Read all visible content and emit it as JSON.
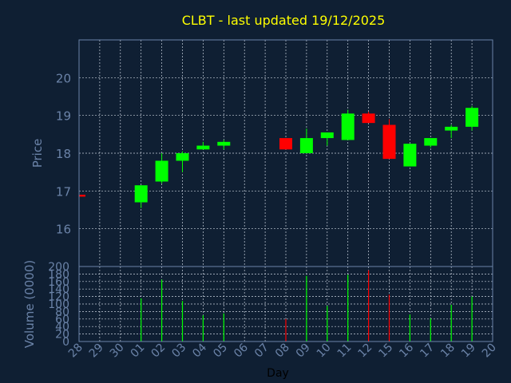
{
  "chart_data": [
    {
      "type": "candlestick",
      "title": "CLBT - last updated 19/12/2025",
      "ylabel": "Price",
      "ylim": [
        15,
        21
      ],
      "yticks": [
        16,
        17,
        18,
        19,
        20
      ],
      "grid": true,
      "categories": [
        "28",
        "29",
        "30",
        "01",
        "02",
        "03",
        "04",
        "05",
        "06",
        "07",
        "08",
        "09",
        "10",
        "11",
        "12",
        "15",
        "16",
        "17",
        "18",
        "19",
        "20"
      ],
      "candles": [
        {
          "day": "28",
          "open": 16.9,
          "high": 16.9,
          "low": 16.85,
          "close": 16.85
        },
        {
          "day": "01",
          "open": 16.7,
          "high": 17.15,
          "low": 16.55,
          "close": 17.15
        },
        {
          "day": "02",
          "open": 17.25,
          "high": 18.0,
          "low": 17.2,
          "close": 17.8
        },
        {
          "day": "03",
          "open": 17.8,
          "high": 18.05,
          "low": 17.5,
          "close": 18.0
        },
        {
          "day": "04",
          "open": 18.1,
          "high": 18.3,
          "low": 18.1,
          "close": 18.2
        },
        {
          "day": "05",
          "open": 18.2,
          "high": 18.35,
          "low": 18.1,
          "close": 18.3
        },
        {
          "day": "08",
          "open": 18.4,
          "high": 18.4,
          "low": 18.1,
          "close": 18.1
        },
        {
          "day": "09",
          "open": 18.0,
          "high": 18.65,
          "low": 18.0,
          "close": 18.4
        },
        {
          "day": "10",
          "open": 18.4,
          "high": 18.55,
          "low": 18.2,
          "close": 18.55
        },
        {
          "day": "11",
          "open": 18.35,
          "high": 19.15,
          "low": 18.35,
          "close": 19.05
        },
        {
          "day": "12",
          "open": 19.05,
          "high": 19.1,
          "low": 18.8,
          "close": 18.8
        },
        {
          "day": "15",
          "open": 18.75,
          "high": 18.9,
          "low": 17.85,
          "close": 17.85
        },
        {
          "day": "16",
          "open": 17.65,
          "high": 18.25,
          "low": 17.65,
          "close": 18.25
        },
        {
          "day": "17",
          "open": 18.2,
          "high": 18.4,
          "low": 18.15,
          "close": 18.4
        },
        {
          "day": "18",
          "open": 18.6,
          "high": 18.75,
          "low": 18.4,
          "close": 18.7
        },
        {
          "day": "19",
          "open": 18.7,
          "high": 19.25,
          "low": 18.6,
          "close": 19.2
        }
      ]
    },
    {
      "type": "bar",
      "ylabel": "Volume (0000)",
      "xlabel": "Day",
      "ylim": [
        0,
        200
      ],
      "yticks": [
        0,
        20,
        40,
        60,
        80,
        100,
        120,
        140,
        160,
        180,
        200
      ],
      "categories": [
        "28",
        "29",
        "30",
        "01",
        "02",
        "03",
        "04",
        "05",
        "06",
        "07",
        "08",
        "09",
        "10",
        "11",
        "12",
        "15",
        "16",
        "17",
        "18",
        "19",
        "20"
      ],
      "values": [
        {
          "day": "01",
          "value": 115,
          "direction": "up"
        },
        {
          "day": "02",
          "value": 165,
          "direction": "up"
        },
        {
          "day": "03",
          "value": 108,
          "direction": "up"
        },
        {
          "day": "04",
          "value": 70,
          "direction": "up"
        },
        {
          "day": "05",
          "value": 75,
          "direction": "up"
        },
        {
          "day": "08",
          "value": 60,
          "direction": "down"
        },
        {
          "day": "09",
          "value": 175,
          "direction": "up"
        },
        {
          "day": "10",
          "value": 95,
          "direction": "up"
        },
        {
          "day": "11",
          "value": 178,
          "direction": "up"
        },
        {
          "day": "12",
          "value": 190,
          "direction": "down"
        },
        {
          "day": "15",
          "value": 125,
          "direction": "down"
        },
        {
          "day": "16",
          "value": 72,
          "direction": "up"
        },
        {
          "day": "17",
          "value": 62,
          "direction": "up"
        },
        {
          "day": "18",
          "value": 98,
          "direction": "up"
        },
        {
          "day": "19",
          "value": 120,
          "direction": "up"
        }
      ]
    }
  ],
  "colors": {
    "background": "#0f1f33",
    "axis": "#6b83a8",
    "label": "#6b83a8",
    "title": "#ffff00",
    "up": "#00ff00",
    "down": "#ff0000",
    "grid": "#c8d0dc",
    "xlabel": "#000000"
  }
}
